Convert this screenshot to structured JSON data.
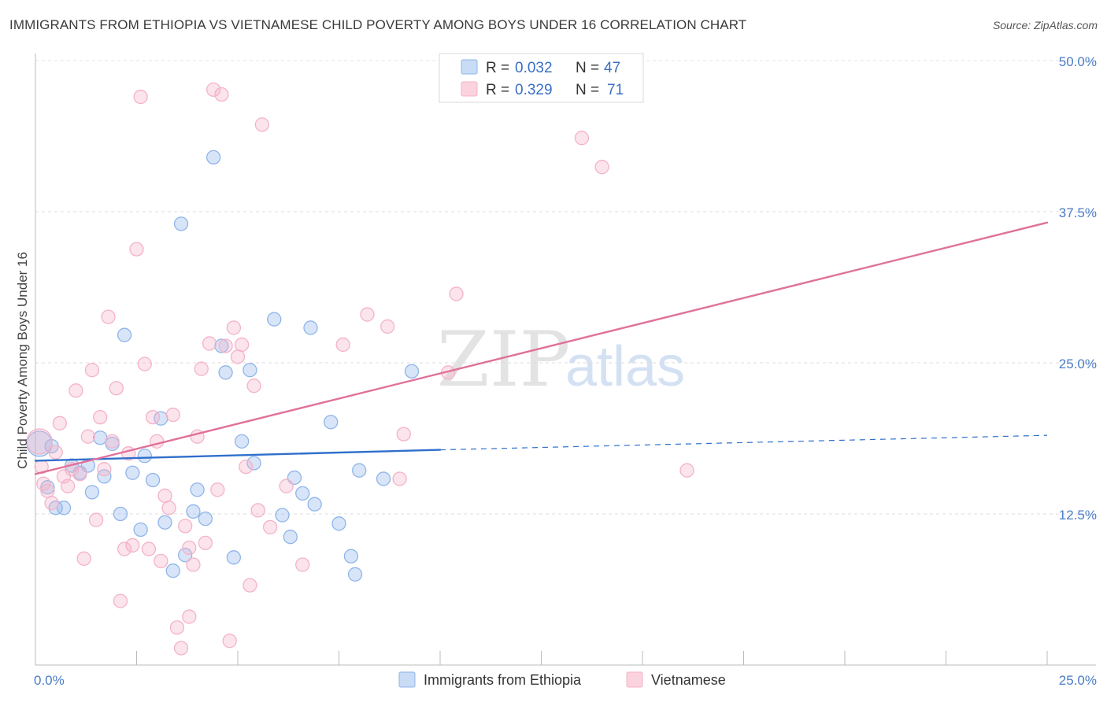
{
  "title": "IMMIGRANTS FROM ETHIOPIA VS VIETNAMESE CHILD POVERTY AMONG BOYS UNDER 16 CORRELATION CHART",
  "source": "Source: ZipAtlas.com",
  "watermark": {
    "zip": "ZIP",
    "atlas": "atlas"
  },
  "chart_data": {
    "type": "scatter",
    "xlabel": "",
    "ylabel": "Child Poverty Among Boys Under 16",
    "xlim": [
      0,
      25
    ],
    "ylim": [
      0,
      50
    ],
    "x_tick_labels": [
      {
        "value": 0,
        "label": "0.0%"
      },
      {
        "value": 25,
        "label": "25.0%"
      }
    ],
    "y_tick_labels": [
      {
        "value": 12.5,
        "label": "12.5%"
      },
      {
        "value": 25,
        "label": "25.0%"
      },
      {
        "value": 37.5,
        "label": "37.5%"
      },
      {
        "value": 50,
        "label": "50.0%"
      }
    ],
    "grid": true,
    "legend_placement": "top-center",
    "series": [
      {
        "name": "Immigrants from Ethiopia",
        "color": "#8fb5ea",
        "line_color": "#2f6fcc",
        "R": "0.032",
        "N": "47",
        "trend": {
          "x": [
            0,
            10
          ],
          "y": [
            16.9,
            17.8
          ],
          "dashed_to": [
            25,
            19.0
          ]
        },
        "points": [
          [
            0.1,
            18.3
          ],
          [
            0.3,
            14.7
          ],
          [
            0.4,
            18.1
          ],
          [
            0.5,
            13.0
          ],
          [
            0.7,
            13.0
          ],
          [
            0.9,
            16.5
          ],
          [
            1.1,
            15.9
          ],
          [
            1.3,
            16.5
          ],
          [
            1.4,
            14.3
          ],
          [
            1.6,
            18.8
          ],
          [
            1.7,
            15.6
          ],
          [
            1.9,
            18.3
          ],
          [
            2.1,
            12.5
          ],
          [
            2.2,
            27.3
          ],
          [
            2.4,
            15.9
          ],
          [
            2.6,
            11.2
          ],
          [
            2.7,
            17.3
          ],
          [
            2.9,
            15.3
          ],
          [
            3.1,
            20.4
          ],
          [
            3.2,
            11.8
          ],
          [
            3.4,
            7.8
          ],
          [
            3.6,
            36.5
          ],
          [
            3.7,
            9.1
          ],
          [
            3.9,
            12.7
          ],
          [
            4.0,
            14.5
          ],
          [
            4.2,
            12.1
          ],
          [
            4.4,
            42.0
          ],
          [
            4.6,
            26.4
          ],
          [
            4.7,
            24.2
          ],
          [
            4.9,
            8.9
          ],
          [
            5.1,
            18.5
          ],
          [
            5.3,
            24.4
          ],
          [
            5.4,
            16.7
          ],
          [
            5.9,
            28.6
          ],
          [
            6.1,
            12.4
          ],
          [
            6.3,
            10.6
          ],
          [
            6.4,
            15.5
          ],
          [
            6.6,
            14.2
          ],
          [
            6.8,
            27.9
          ],
          [
            6.9,
            13.3
          ],
          [
            7.3,
            20.1
          ],
          [
            7.5,
            11.7
          ],
          [
            7.8,
            9.0
          ],
          [
            7.9,
            7.5
          ],
          [
            8.0,
            16.1
          ],
          [
            8.6,
            15.4
          ],
          [
            9.3,
            24.3
          ]
        ]
      },
      {
        "name": "Vietnamese",
        "color": "#f4b3c8",
        "line_color": "#e0719a",
        "R": "0.329",
        "N": "71",
        "trend": {
          "x": [
            0,
            25
          ],
          "y": [
            15.8,
            36.6
          ]
        },
        "points": [
          [
            0.1,
            18.5
          ],
          [
            0.2,
            15.0
          ],
          [
            0.3,
            14.4
          ],
          [
            0.4,
            13.4
          ],
          [
            0.5,
            17.6
          ],
          [
            0.6,
            20.0
          ],
          [
            0.7,
            15.6
          ],
          [
            0.8,
            14.8
          ],
          [
            0.9,
            16.2
          ],
          [
            1.0,
            22.7
          ],
          [
            1.1,
            15.8
          ],
          [
            1.2,
            8.8
          ],
          [
            1.3,
            18.9
          ],
          [
            1.4,
            24.4
          ],
          [
            1.5,
            12.0
          ],
          [
            1.6,
            20.5
          ],
          [
            1.7,
            16.2
          ],
          [
            1.8,
            28.8
          ],
          [
            1.9,
            18.5
          ],
          [
            2.0,
            22.9
          ],
          [
            2.1,
            5.3
          ],
          [
            2.2,
            9.6
          ],
          [
            2.3,
            17.5
          ],
          [
            2.4,
            9.9
          ],
          [
            2.5,
            34.4
          ],
          [
            2.6,
            47.0
          ],
          [
            2.7,
            24.9
          ],
          [
            2.8,
            9.6
          ],
          [
            2.9,
            20.5
          ],
          [
            3.0,
            18.5
          ],
          [
            3.1,
            8.6
          ],
          [
            3.2,
            14.0
          ],
          [
            3.3,
            13.0
          ],
          [
            3.4,
            20.7
          ],
          [
            3.5,
            3.1
          ],
          [
            3.6,
            1.4
          ],
          [
            3.7,
            11.5
          ],
          [
            3.8,
            9.7
          ],
          [
            3.9,
            8.3
          ],
          [
            4.0,
            18.9
          ],
          [
            4.1,
            24.5
          ],
          [
            4.2,
            10.1
          ],
          [
            4.3,
            26.6
          ],
          [
            4.4,
            47.6
          ],
          [
            4.5,
            14.5
          ],
          [
            4.6,
            47.2
          ],
          [
            4.7,
            26.4
          ],
          [
            4.8,
            2.0
          ],
          [
            4.9,
            27.9
          ],
          [
            5.0,
            25.5
          ],
          [
            5.1,
            26.5
          ],
          [
            5.2,
            16.4
          ],
          [
            5.3,
            6.6
          ],
          [
            5.4,
            23.1
          ],
          [
            5.5,
            12.8
          ],
          [
            5.6,
            44.7
          ],
          [
            5.8,
            11.4
          ],
          [
            6.2,
            14.8
          ],
          [
            6.6,
            8.3
          ],
          [
            7.6,
            26.5
          ],
          [
            8.2,
            29.0
          ],
          [
            8.7,
            28.0
          ],
          [
            9.0,
            15.4
          ],
          [
            9.1,
            19.1
          ],
          [
            10.2,
            24.2
          ],
          [
            10.4,
            30.7
          ],
          [
            13.5,
            43.6
          ],
          [
            14.0,
            41.2
          ],
          [
            16.1,
            16.1
          ],
          [
            0.15,
            16.4
          ],
          [
            3.8,
            4.0
          ]
        ]
      }
    ]
  }
}
